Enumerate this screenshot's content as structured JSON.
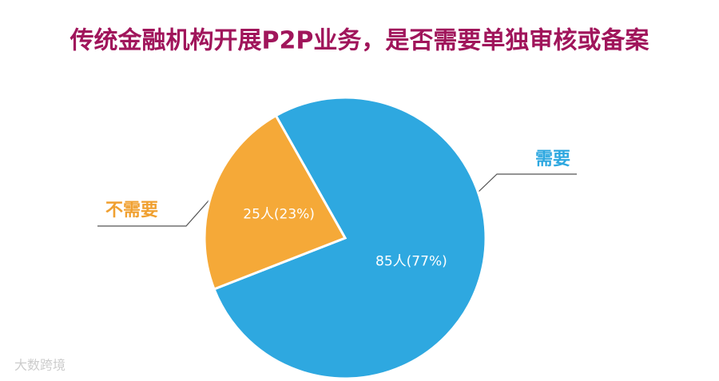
{
  "chart_data": {
    "type": "pie",
    "title": "传统金融机构开展P2P业务，是否需要单独审核或备案",
    "categories": [
      "需要",
      "不需要"
    ],
    "values": [
      85,
      25
    ],
    "value_labels": [
      "85人(77%)",
      "25人(23%)"
    ],
    "colors": [
      "#2ea8e0",
      "#f5a938"
    ],
    "watermark": "大数跨境"
  }
}
